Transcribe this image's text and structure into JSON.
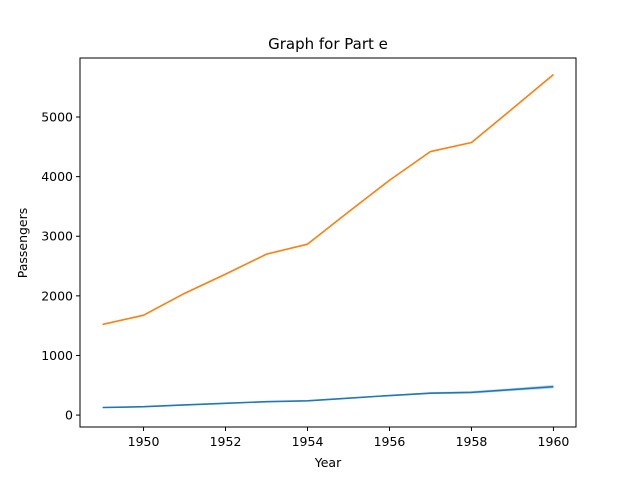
{
  "chart_data": {
    "type": "line",
    "title": "Graph for Part e",
    "xlabel": "Year",
    "ylabel": "Passengers",
    "xlim": [
      1948.45,
      1960.55
    ],
    "ylim": [
      -200,
      5990
    ],
    "xticks": [
      1950,
      1952,
      1954,
      1956,
      1958,
      1960
    ],
    "yticks": [
      0,
      1000,
      2000,
      3000,
      4000,
      5000
    ],
    "grid": false,
    "x": [
      1949,
      1950,
      1951,
      1952,
      1953,
      1954,
      1955,
      1956,
      1957,
      1958,
      1959,
      1960
    ],
    "series": [
      {
        "color": "#1f77b4",
        "values": [
          127,
          140,
          170,
          197,
          225,
          239,
          284,
          328,
          368,
          381,
          428,
          476
        ],
        "band_low": [
          124,
          134,
          165,
          193,
          220,
          234,
          278,
          318,
          352,
          358,
          403,
          444
        ],
        "band_high": [
          131,
          146,
          176,
          202,
          230,
          245,
          290,
          336,
          384,
          404,
          452,
          508
        ]
      },
      {
        "color": "#ff7f0e",
        "values": [
          1520,
          1676,
          2042,
          2364,
          2700,
          2867,
          3408,
          3939,
          4421,
          4572,
          5140,
          5714
        ]
      }
    ]
  }
}
